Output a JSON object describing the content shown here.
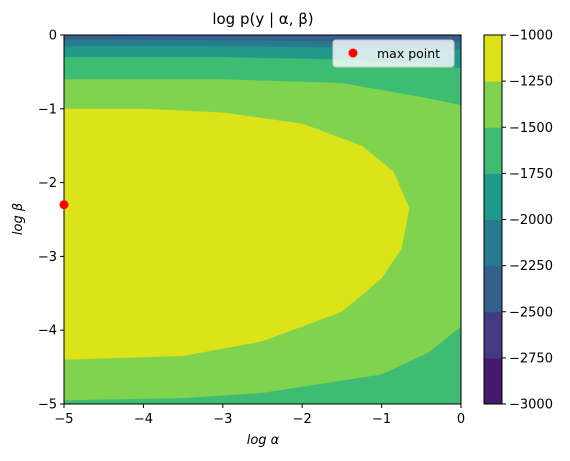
{
  "chart_data": {
    "type": "contour",
    "title": "log p(y | α, β)",
    "xlabel": "log α",
    "ylabel": "log β",
    "xlim": [
      -5,
      0
    ],
    "ylim": [
      -5,
      0
    ],
    "x_ticks": [
      "−5",
      "−4",
      "−3",
      "−2",
      "−1",
      "0"
    ],
    "x_tick_values": [
      -5,
      -4,
      -3,
      -2,
      -1,
      0
    ],
    "y_ticks": [
      "−5",
      "−4",
      "−3",
      "−2",
      "−1",
      "0"
    ],
    "y_tick_values": [
      -5,
      -4,
      -3,
      -2,
      -1,
      0
    ],
    "levels": [
      -3000,
      -2750,
      -2500,
      -2250,
      -2000,
      -1750,
      -1500,
      -1250,
      -1000
    ],
    "level_colors": [
      "#471a6e",
      "#443a84",
      "#34608d",
      "#287b8e",
      "#1f9a8a",
      "#3fbc73",
      "#7fd34e",
      "#dce319"
    ],
    "colorbar_ticks": [
      "−1000",
      "−1250",
      "−1500",
      "−1750",
      "−2000",
      "−2250",
      "−2500",
      "−2750",
      "−3000"
    ],
    "colorbar_tick_values": [
      -1000,
      -1250,
      -1500,
      -1750,
      -2000,
      -2250,
      -2500,
      -2750,
      -3000
    ],
    "max_point": {
      "x": -5,
      "y": -2.3,
      "color": "#ff0000"
    },
    "legend": {
      "label": "max point",
      "placement": "upper right"
    },
    "regions": [
      {
        "level": "-1250 to -1000",
        "color": "#dce319",
        "boundary": [
          [
            -5,
            -1.0
          ],
          [
            -4,
            -1.0
          ],
          [
            -3,
            -1.05
          ],
          [
            -2,
            -1.2
          ],
          [
            -1.25,
            -1.5
          ],
          [
            -0.85,
            -1.85
          ],
          [
            -0.65,
            -2.35
          ],
          [
            -0.75,
            -2.9
          ],
          [
            -1.0,
            -3.3
          ],
          [
            -1.5,
            -3.75
          ],
          [
            -2.5,
            -4.15
          ],
          [
            -3.5,
            -4.35
          ],
          [
            -5,
            -4.4
          ]
        ]
      },
      {
        "level": "-1500 to -1250",
        "color": "#7fd34e",
        "boundary": [
          [
            -5,
            -0.6
          ],
          [
            -3,
            -0.6
          ],
          [
            -1.5,
            -0.65
          ],
          [
            -0.45,
            -0.85
          ],
          [
            0,
            -0.95
          ],
          [
            0,
            -3.95
          ],
          [
            -0.4,
            -4.3
          ],
          [
            -1,
            -4.6
          ],
          [
            -2.5,
            -4.85
          ],
          [
            -3.5,
            -4.92
          ],
          [
            -5,
            -4.95
          ]
        ]
      },
      {
        "level": "-1750 to -1500",
        "color": "#3fbc73",
        "boundary": [
          [
            -5,
            -0.3
          ],
          [
            -3,
            -0.3
          ],
          [
            -1.5,
            -0.33
          ],
          [
            -0.5,
            -0.38
          ],
          [
            0,
            -0.45
          ],
          [
            0,
            -5
          ],
          [
            -5,
            -5
          ]
        ]
      },
      {
        "level": "-2000 to -1750",
        "color": "#1f9a8a",
        "boundary": [
          [
            -5,
            -0.15
          ],
          [
            -3,
            -0.15
          ],
          [
            -1.5,
            -0.17
          ],
          [
            0,
            -0.2
          ],
          [
            0,
            -5
          ],
          [
            -5,
            -5
          ]
        ]
      },
      {
        "level": "-2250 to -2000",
        "color": "#287b8e",
        "boundary": [
          [
            -5,
            -0.06
          ],
          [
            -3,
            -0.07
          ],
          [
            -1.5,
            -0.09
          ],
          [
            0,
            -0.1
          ],
          [
            0,
            -5
          ],
          [
            -5,
            -5
          ]
        ]
      }
    ]
  }
}
